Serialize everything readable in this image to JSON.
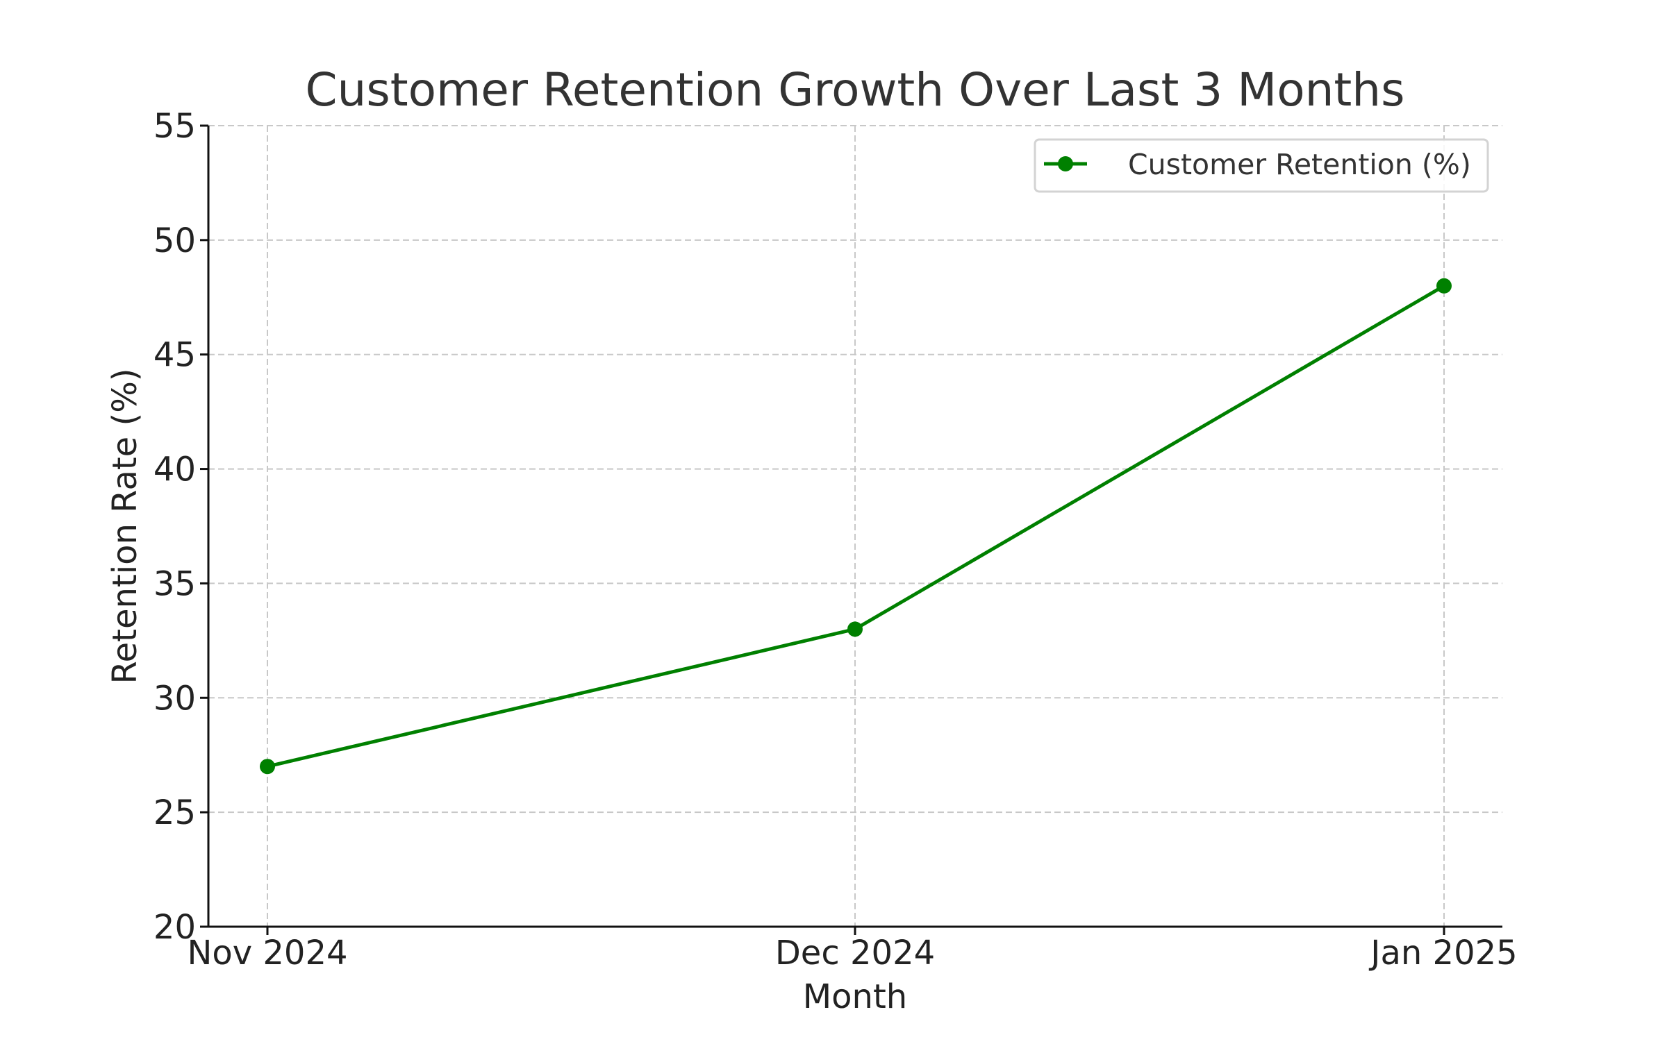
{
  "chart_data": {
    "type": "line",
    "title": "Customer Retention Growth Over Last 3 Months",
    "xlabel": "Month",
    "ylabel": "Retention Rate (%)",
    "categories": [
      "Nov 2024",
      "Dec 2024",
      "Jan 2025"
    ],
    "series": [
      {
        "name": "Customer Retention (%)",
        "values": [
          27,
          33,
          48
        ],
        "color": "#008000",
        "marker": "circle"
      }
    ],
    "ylim": [
      20,
      55
    ],
    "yticks": [
      20,
      25,
      30,
      35,
      40,
      45,
      50,
      55
    ],
    "grid": true,
    "grid_style": "dashed",
    "legend": "top-right"
  }
}
